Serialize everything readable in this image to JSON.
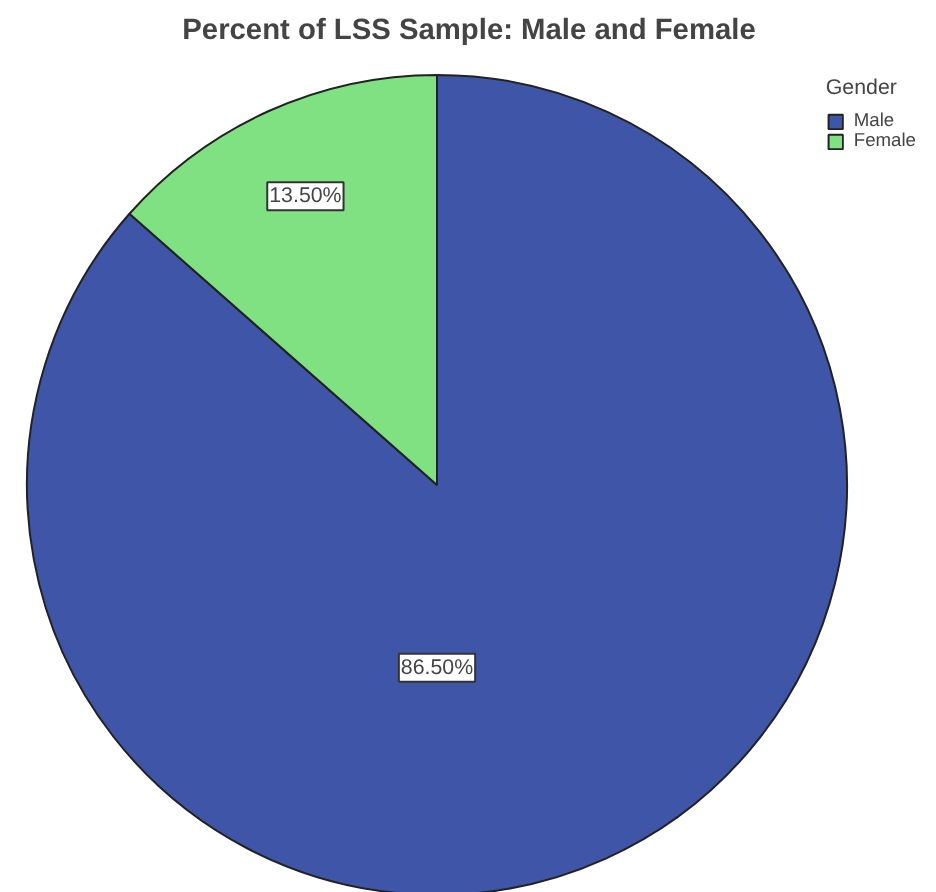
{
  "chart_data": {
    "type": "pie",
    "title": "Percent of LSS Sample: Male and Female",
    "legend_title": "Gender",
    "legend": "top right",
    "categories": [
      "Male",
      "Female"
    ],
    "values": [
      86.5,
      13.5
    ],
    "colors": [
      "#3f56a8",
      "#80e182"
    ],
    "value_labels": [
      "86.50%",
      "13.50%"
    ]
  }
}
